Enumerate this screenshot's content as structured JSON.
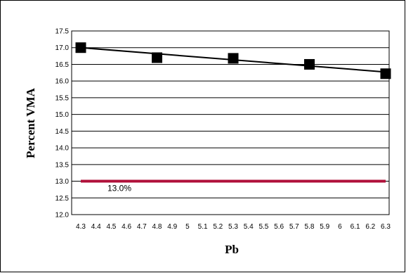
{
  "chart_data": {
    "type": "line",
    "title": "",
    "xlabel": "Pb",
    "ylabel": "Percent VMA",
    "xlim": [
      4.3,
      6.3
    ],
    "ylim": [
      12.0,
      17.5
    ],
    "x_ticks": [
      "4.3",
      "4.4",
      "4.5",
      "4.6",
      "4.7",
      "4.8",
      "4.9",
      "5",
      "5.1",
      "5.2",
      "5.3",
      "5.4",
      "5.5",
      "5.6",
      "5.7",
      "5.8",
      "5.9",
      "6",
      "6.1",
      "6.2",
      "6.3"
    ],
    "y_ticks": [
      "12.0",
      "12.5",
      "13.0",
      "13.5",
      "14.0",
      "14.5",
      "15.0",
      "15.5",
      "16.0",
      "16.5",
      "17.0",
      "17.5"
    ],
    "grid": {
      "horizontal": true,
      "vertical": false
    },
    "legend": "none",
    "series": [
      {
        "marker": "square",
        "color": "#000000",
        "points": [
          {
            "x": 4.3,
            "y": 17.0
          },
          {
            "x": 4.8,
            "y": 16.7
          },
          {
            "x": 5.3,
            "y": 16.68
          },
          {
            "x": 5.8,
            "y": 16.5
          },
          {
            "x": 6.3,
            "y": 16.22
          }
        ]
      }
    ],
    "trendline": {
      "color": "#000000",
      "from": {
        "x": 4.3,
        "y": 17.0
      },
      "to": {
        "x": 6.3,
        "y": 16.27
      }
    },
    "reference_line": {
      "y": 13.0,
      "label": "13.0%",
      "color": "#b0103a"
    }
  }
}
